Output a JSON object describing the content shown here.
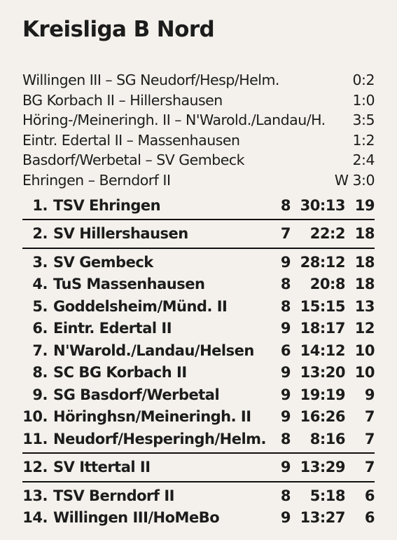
{
  "title": "Kreisliga B Nord",
  "results": [
    {
      "match": "Willingen III – SG Neudorf/Hesp/Helm.",
      "score": "0:2"
    },
    {
      "match": "BG Korbach II – Hillershausen",
      "score": "1:0"
    },
    {
      "match": "Höring-/Meineringh. II – N'Warold./Landau/H.",
      "score": "3:5"
    },
    {
      "match": "Eintr. Edertal II – Massenhausen",
      "score": "1:2"
    },
    {
      "match": "Basdorf/Werbetal – SV Gembeck",
      "score": "2:4"
    },
    {
      "match": "Ehringen – Berndorf II",
      "score": "W 3:0"
    }
  ],
  "standings": [
    {
      "pos": "1.",
      "team": "TSV Ehringen",
      "games": "8",
      "goals": "30:13",
      "points": "19"
    },
    {
      "pos": "2.",
      "team": "SV Hillershausen",
      "games": "7",
      "goals": "22:2",
      "points": "18"
    },
    {
      "pos": "3.",
      "team": "SV Gembeck",
      "games": "9",
      "goals": "28:12",
      "points": "18"
    },
    {
      "pos": "4.",
      "team": "TuS Massenhausen",
      "games": "8",
      "goals": "20:8",
      "points": "18"
    },
    {
      "pos": "5.",
      "team": "Goddelsheim/Münd. II",
      "games": "8",
      "goals": "15:15",
      "points": "13"
    },
    {
      "pos": "6.",
      "team": "Eintr. Edertal II",
      "games": "9",
      "goals": "18:17",
      "points": "12"
    },
    {
      "pos": "7.",
      "team": "N'Warold./Landau/Helsen",
      "games": "6",
      "goals": "14:12",
      "points": "10"
    },
    {
      "pos": "8.",
      "team": "SC BG Korbach II",
      "games": "9",
      "goals": "13:20",
      "points": "10"
    },
    {
      "pos": "9.",
      "team": "SG Basdorf/Werbetal",
      "games": "9",
      "goals": "19:19",
      "points": "9"
    },
    {
      "pos": "10.",
      "team": "Höringhsn/Meineringh. II",
      "games": "9",
      "goals": "16:26",
      "points": "7"
    },
    {
      "pos": "11.",
      "team": "Neudorf/Hesperingh/Helm.",
      "games": "8",
      "goals": "8:16",
      "points": "7"
    },
    {
      "pos": "12.",
      "team": "SV Ittertal II",
      "games": "9",
      "goals": "13:29",
      "points": "7"
    },
    {
      "pos": "13.",
      "team": "TSV Berndorf II",
      "games": "8",
      "goals": "5:18",
      "points": "6"
    },
    {
      "pos": "14.",
      "team": "Willingen III/HoMeBo",
      "games": "9",
      "goals": "13:27",
      "points": "6"
    }
  ]
}
